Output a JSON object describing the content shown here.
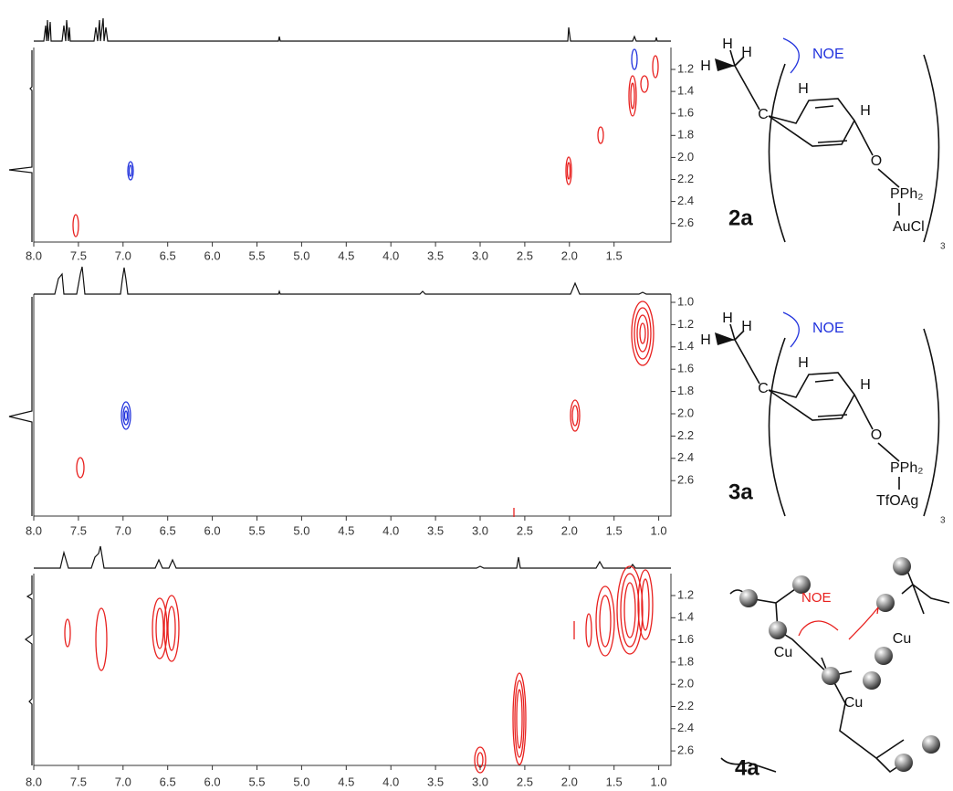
{
  "panels": [
    {
      "x_ticks": [
        "8.0",
        "7.5",
        "7.0",
        "6.5",
        "6.0",
        "5.5",
        "5.0",
        "4.5",
        "4.0",
        "3.5",
        "3.0",
        "2.5",
        "2.0",
        "1.5"
      ],
      "y_ticks": [
        "1.2",
        "1.4",
        "1.6",
        "1.8",
        "2.0",
        "2.2",
        "2.4",
        "2.6"
      ]
    },
    {
      "x_ticks": [
        "8.0",
        "7.5",
        "7.0",
        "6.5",
        "6.0",
        "5.5",
        "5.0",
        "4.5",
        "4.0",
        "3.5",
        "3.0",
        "2.5",
        "2.0",
        "1.5",
        "1.0"
      ],
      "y_ticks": [
        "1.0",
        "1.2",
        "1.4",
        "1.6",
        "1.8",
        "2.0",
        "2.2",
        "2.4",
        "2.6"
      ]
    },
    {
      "x_ticks": [
        "8.0",
        "7.5",
        "7.0",
        "6.5",
        "6.0",
        "5.5",
        "5.0",
        "4.5",
        "4.0",
        "3.5",
        "3.0",
        "2.5",
        "2.0",
        "1.5",
        "1.0"
      ],
      "y_ticks": [
        "1.2",
        "1.4",
        "1.6",
        "1.8",
        "2.0",
        "2.2",
        "2.4",
        "2.6"
      ]
    }
  ],
  "structures": [
    {
      "label": "2a",
      "annotation": "NOE",
      "atoms": [
        "H",
        "H",
        "H",
        "C",
        "H",
        "H",
        "O"
      ],
      "phosphine": "PPh₂",
      "metal": "AuCl",
      "count": "3"
    },
    {
      "label": "3a",
      "annotation": "NOE",
      "atoms": [
        "H",
        "H",
        "H",
        "C",
        "H",
        "H",
        "O"
      ],
      "phosphine": "PPh₂",
      "metal": "TfOAg",
      "count": "3"
    },
    {
      "label": "4a",
      "annotation": "NOE",
      "atoms": [
        "Cu",
        "Cu",
        "Cu"
      ]
    }
  ]
}
